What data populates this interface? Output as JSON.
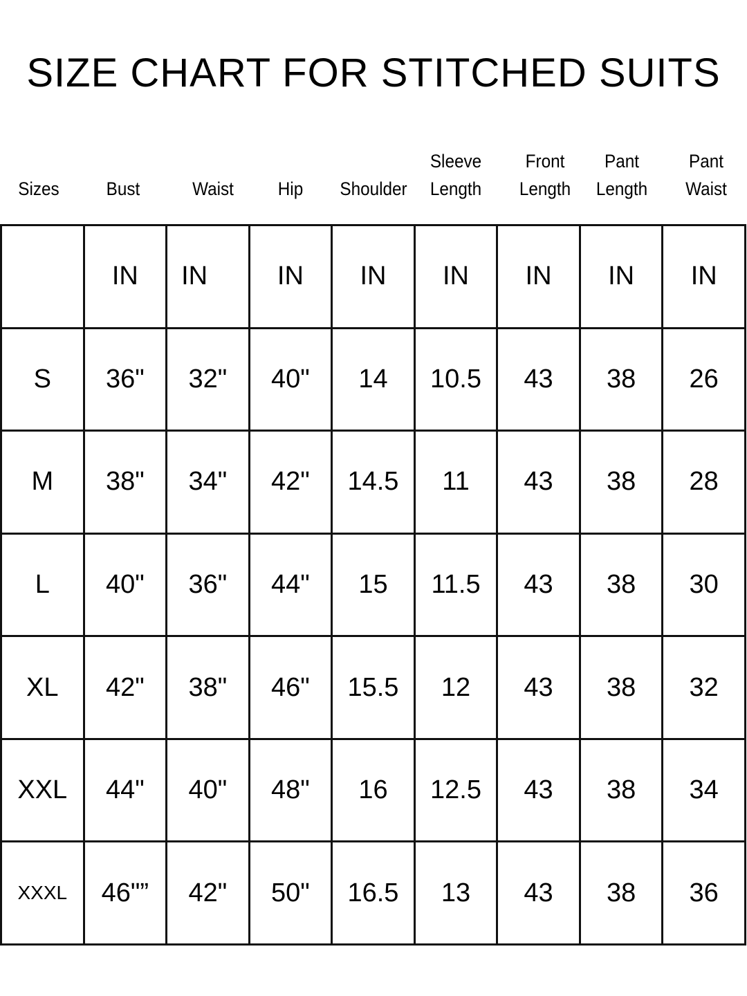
{
  "chart_data": {
    "type": "table",
    "title": "SIZE CHART FOR STITCHED SUITS",
    "columns": [
      "Sizes",
      "Bust",
      "Waist",
      "Hip",
      "Shoulder",
      "Sleeve\nLength",
      "Front\nLength",
      "Pant\nLength",
      "Pant\nWaist"
    ],
    "units": [
      "",
      "IN",
      "IN",
      "IN",
      "IN",
      "IN",
      "IN",
      "IN",
      "IN"
    ],
    "rows": [
      [
        "S",
        "36\"",
        "32\"",
        "40\"",
        "14",
        "10.5",
        "43",
        "38",
        "26"
      ],
      [
        "M",
        "38\"",
        "34\"",
        "42\"",
        "14.5",
        "11",
        "43",
        "38",
        "28"
      ],
      [
        "L",
        "40\"",
        "36\"",
        "44\"",
        "15",
        "11.5",
        "43",
        "38",
        "30"
      ],
      [
        "XL",
        "42\"",
        "38\"",
        "46\"",
        "15.5",
        "12",
        "43",
        "38",
        "32"
      ],
      [
        "XXL",
        "44\"",
        "40\"",
        "48\"",
        "16",
        "12.5",
        "43",
        "38",
        "34"
      ],
      [
        "XXXL",
        "46\"”",
        "42\"",
        "50\"",
        "16.5",
        "13",
        "43",
        "38",
        "36"
      ]
    ]
  }
}
